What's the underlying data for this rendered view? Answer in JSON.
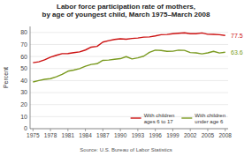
{
  "chart_data": {
    "type": "line",
    "title": "Labor force participation  rate of mothers,\nby age of youngest child, March 1975–March 2008",
    "y_label": "Percent",
    "annotations": [
      {
        "text": "Source: U.S. Bureau of Labor Statistics"
      },
      {
        "text": "77.5",
        "x": 2008,
        "y": 77.5,
        "color": "#cc1111"
      },
      {
        "text": "63.6",
        "x": 2008,
        "y": 63.6,
        "color": "#7a9a20"
      }
    ],
    "x": [
      1975,
      1976,
      1977,
      1978,
      1979,
      1980,
      1981,
      1982,
      1983,
      1984,
      1985,
      1986,
      1987,
      1988,
      1989,
      1990,
      1991,
      1992,
      1993,
      1994,
      1995,
      1996,
      1997,
      1998,
      1999,
      2000,
      2001,
      2002,
      2003,
      2004,
      2005,
      2006,
      2007,
      2008
    ],
    "series": [
      {
        "name": "With children\nages 6 to  17",
        "color": "#cc1111",
        "values": [
          54.9,
          55.6,
          57.2,
          59.4,
          61.0,
          62.4,
          62.5,
          63.2,
          63.8,
          65.4,
          67.8,
          68.4,
          72.0,
          73.2,
          74.2,
          74.7,
          74.4,
          75.0,
          75.4,
          76.1,
          76.3,
          77.1,
          78.1,
          78.3,
          79.0,
          79.3,
          79.7,
          79.0,
          79.0,
          79.6,
          78.5,
          78.4,
          78.1,
          77.5
        ]
      },
      {
        "name": "With children\nunder age 6",
        "color": "#7a9a20",
        "values": [
          38.8,
          40.0,
          41.0,
          41.6,
          43.2,
          45.1,
          47.8,
          48.7,
          49.9,
          51.9,
          53.4,
          54.0,
          56.8,
          57.1,
          57.7,
          58.2,
          59.9,
          58.0,
          58.9,
          60.3,
          63.5,
          65.3,
          65.0,
          64.3,
          64.4,
          65.3,
          65.1,
          63.3,
          63.0,
          62.2,
          63.0,
          64.3,
          62.9,
          63.6
        ]
      }
    ],
    "xlim": [
      1974.5,
      2008.5
    ],
    "xticks": [
      1975,
      1978,
      1981,
      1984,
      1987,
      1990,
      1993,
      1996,
      1999,
      2002,
      2005,
      2008
    ],
    "ylim": [
      0,
      85
    ],
    "yticks": [
      0,
      10,
      20,
      30,
      40,
      50,
      60,
      70,
      80
    ],
    "grid": true,
    "legend": "lower right"
  }
}
